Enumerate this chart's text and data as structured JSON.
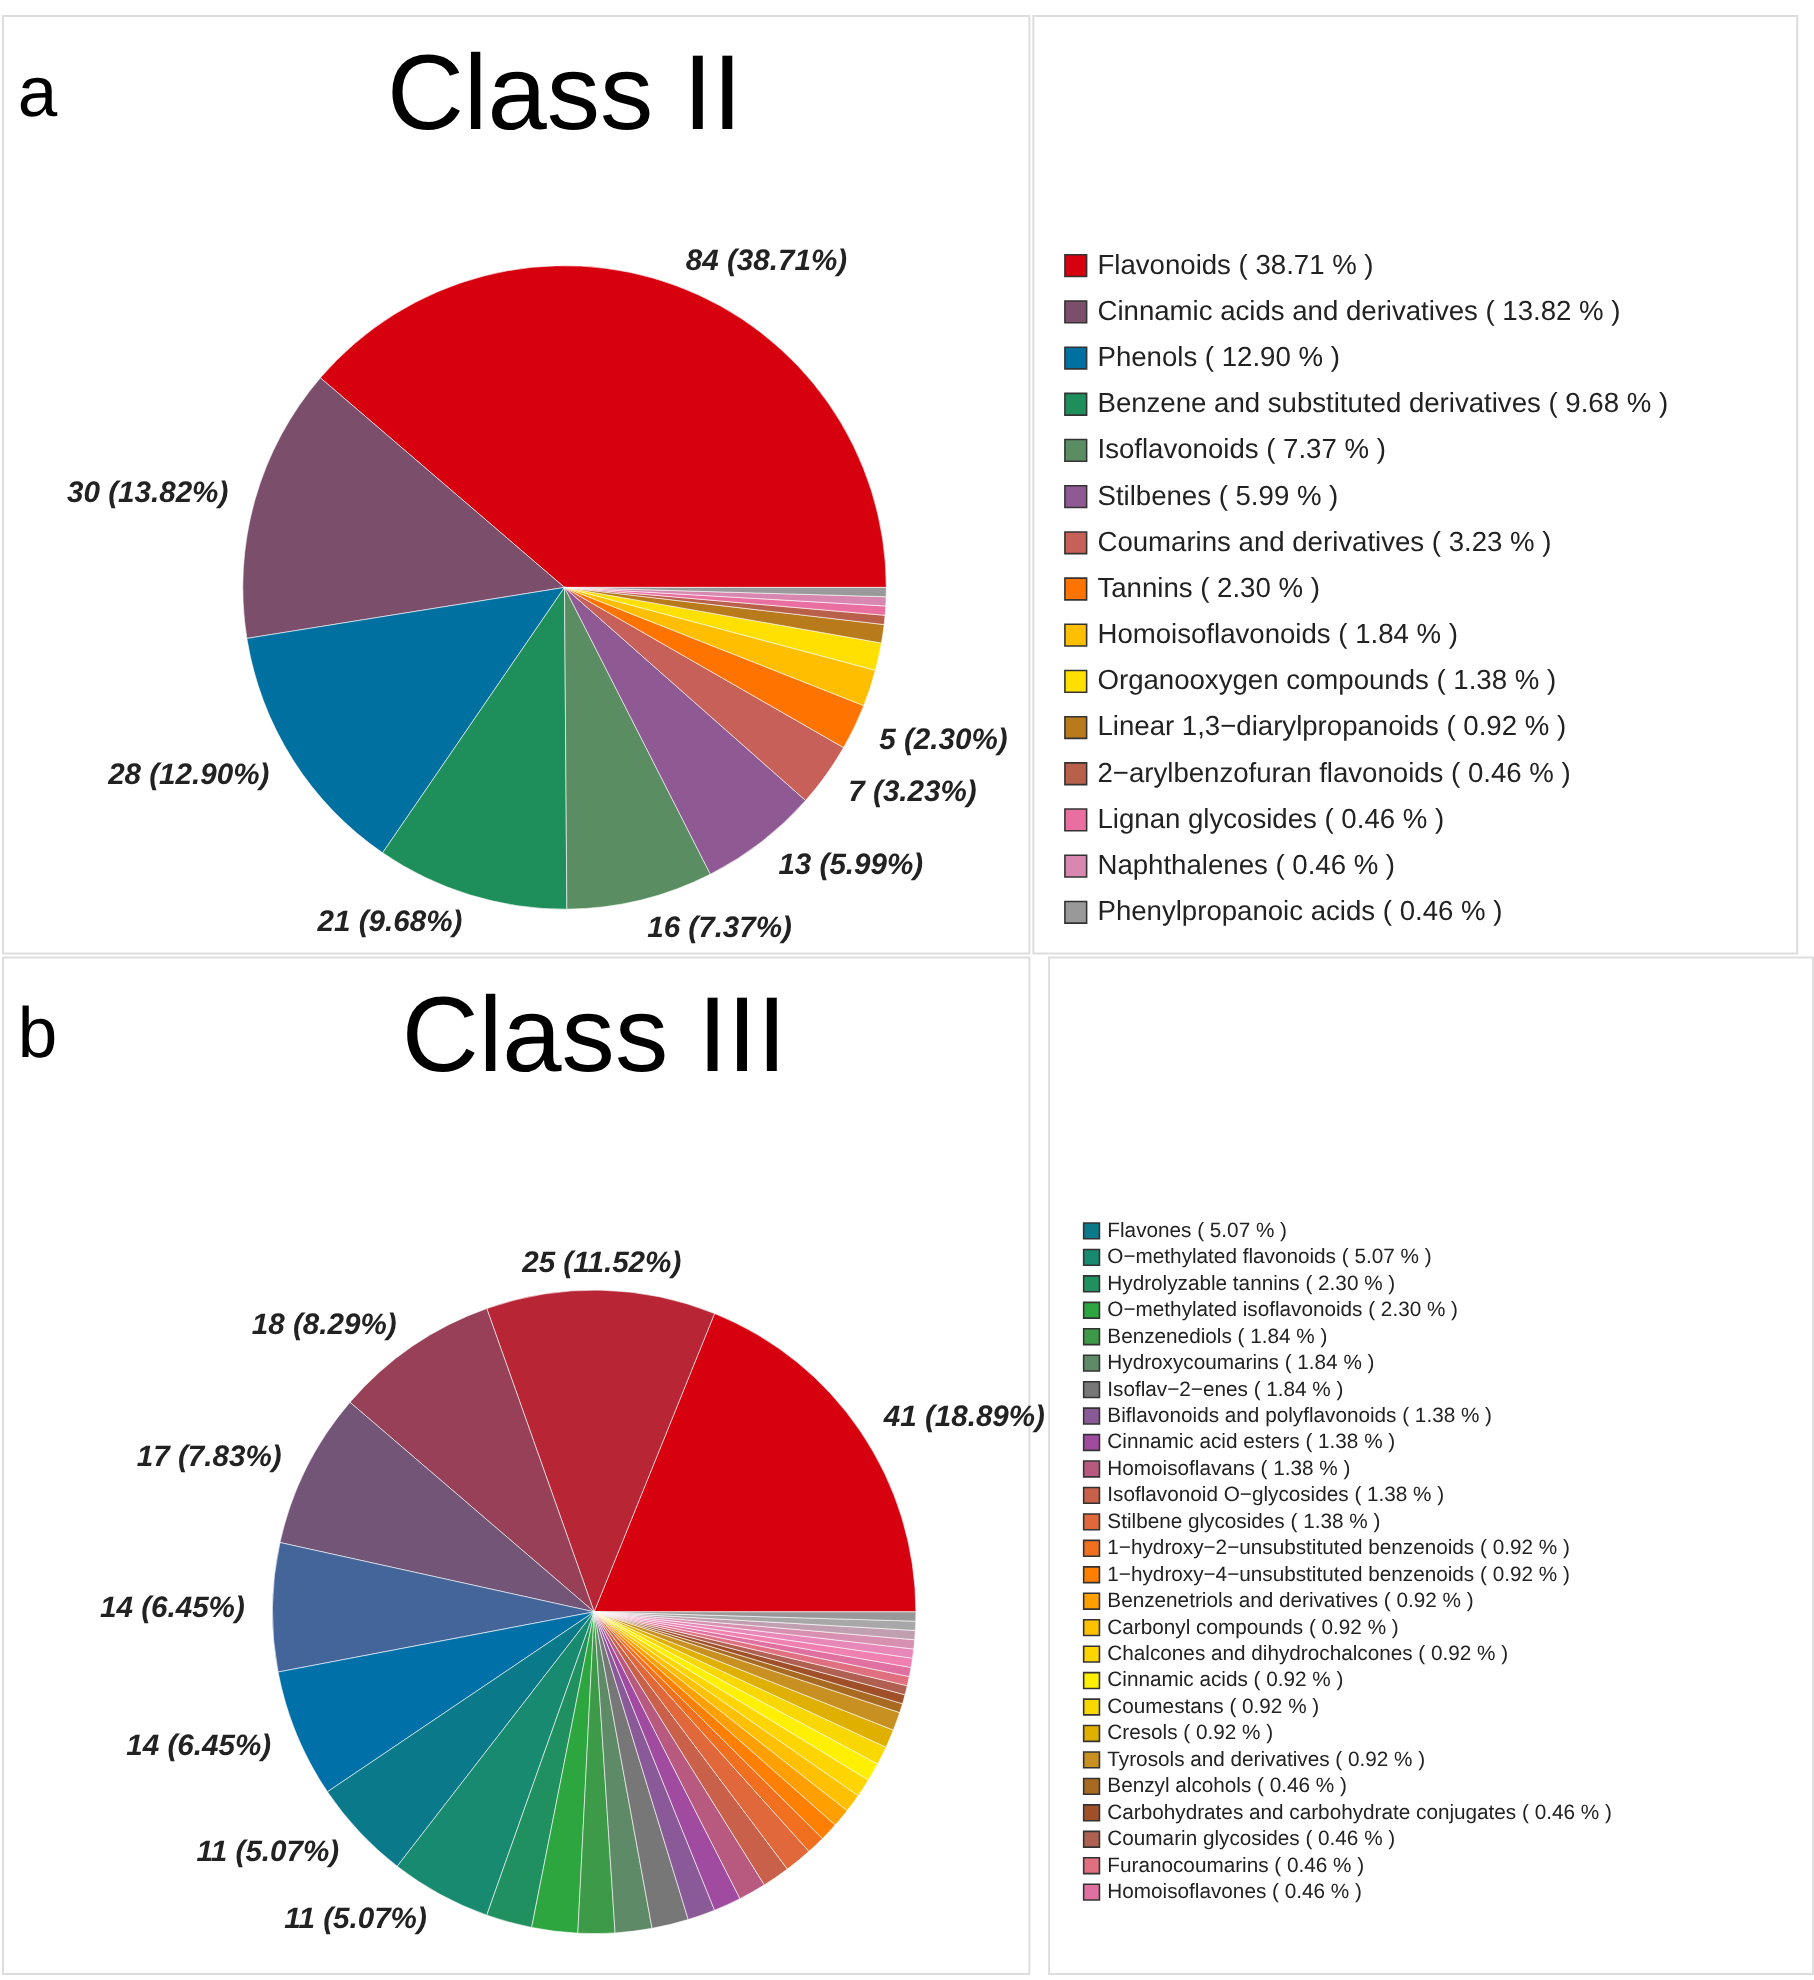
{
  "chart_data": [
    {
      "type": "pie",
      "title": "Class II",
      "annotations": [
        "a"
      ],
      "legend": "right",
      "categories": [
        "Flavonoids ( 38.71 % )",
        "Cinnamic acids and derivatives ( 13.82 % )",
        "Phenols ( 12.90 % )",
        "Benzene and substituted derivatives ( 9.68 % )",
        "Isoflavonoids ( 7.37 % )",
        "Stilbenes ( 5.99 % )",
        "Coumarins and derivatives ( 3.23 % )",
        "Tannins ( 2.30 % )",
        "Homoisoflavonoids ( 1.84 % )",
        "Organooxygen compounds ( 1.38 % )",
        "Linear 1,3−diarylpropanoids ( 0.92 % )",
        "2−arylbenzofuran flavonoids ( 0.46 % )",
        "Lignan glycosides ( 0.46 % )",
        "Naphthalenes ( 0.46 % )",
        "Phenylpropanoic acids ( 0.46 % )"
      ],
      "values": [
        84,
        30,
        28,
        21,
        16,
        13,
        7,
        5,
        4,
        3,
        2,
        1,
        1,
        1,
        1
      ],
      "colors": [
        "#d7000f",
        "#7b4e6b",
        "#0070a0",
        "#1e8f5a",
        "#5a8e62",
        "#8f5a94",
        "#c8605a",
        "#ff7300",
        "#ffbf00",
        "#ffe000",
        "#b87a1a",
        "#b8604a",
        "#e86fa0",
        "#d888b0",
        "#999999"
      ],
      "value_labels": [
        "84 (38.71%)",
        "30 (13.82%)",
        "28 (12.90%)",
        "21 (9.68%)",
        "16 (7.37%)",
        "13 (5.99%)",
        "7 (3.23%)",
        "5 (2.30%)",
        null,
        null,
        null,
        null,
        null,
        null,
        null
      ]
    },
    {
      "type": "pie",
      "title": "Class III",
      "annotations": [
        "b"
      ],
      "legend": "right",
      "categories": [
        null,
        null,
        null,
        null,
        null,
        null,
        "Flavones ( 5.07 % )",
        "O−methylated flavonoids ( 5.07 % )",
        "Hydrolyzable tannins ( 2.30 % )",
        "O−methylated isoflavonoids ( 2.30 % )",
        "Benzenediols ( 1.84 % )",
        "Hydroxycoumarins ( 1.84 % )",
        "Isoflav−2−enes ( 1.84 % )",
        "Biflavonoids and polyflavonoids ( 1.38 % )",
        "Cinnamic acid esters ( 1.38 % )",
        "Homoisoflavans ( 1.38 % )",
        "Isoflavonoid O−glycosides ( 1.38 % )",
        "Stilbene glycosides ( 1.38 % )",
        "1−hydroxy−2−unsubstituted benzenoids ( 0.92 % )",
        "1−hydroxy−4−unsubstituted benzenoids ( 0.92 % )",
        "Benzenetriols and derivatives ( 0.92 % )",
        "Carbonyl compounds ( 0.92 % )",
        "Chalcones and dihydrochalcones ( 0.92 % )",
        "Cinnamic acids ( 0.92 % )",
        "Coumestans ( 0.92 % )",
        "Cresols ( 0.92 % )",
        "Tyrosols and derivatives ( 0.92 % )",
        "Benzyl alcohols ( 0.46 % )",
        "Carbohydrates and carbohydrate conjugates ( 0.46 % )",
        "Coumarin glycosides ( 0.46 % )",
        "Furanocoumarins ( 0.46 % )",
        "Homoisoflavones ( 0.46 % )",
        null,
        null,
        null,
        null,
        null,
        null
      ],
      "values": [
        41,
        25,
        18,
        17,
        14,
        14,
        11,
        11,
        5,
        5,
        4,
        4,
        4,
        3,
        3,
        3,
        3,
        3,
        2,
        2,
        2,
        2,
        2,
        2,
        2,
        2,
        2,
        1,
        1,
        1,
        1,
        1,
        1,
        1,
        1,
        1,
        1,
        1
      ],
      "colors": [
        "#d7000f",
        "#b82535",
        "#974058",
        "#735577",
        "#43659a",
        "#0071a8",
        "#0a7a8a",
        "#178a70",
        "#219060",
        "#2ea640",
        "#3d9a48",
        "#5f8a68",
        "#777777",
        "#8a5a98",
        "#a04aa0",
        "#b85a80",
        "#c8604a",
        "#e0683a",
        "#f07020",
        "#ff8000",
        "#ffa000",
        "#ffc000",
        "#ffd500",
        "#fff000",
        "#f8d800",
        "#e0b000",
        "#c89020",
        "#a86a20",
        "#a05028",
        "#b06050",
        "#e07080",
        "#e070a0",
        "#f080b0",
        "#e888b8",
        "#d890b0",
        "#c0a0b0",
        "#a8a8a8",
        "#999999"
      ],
      "value_labels": [
        "41 (18.89%)",
        "25 (11.52%)",
        "18 (8.29%)",
        "17 (7.83%)",
        "14 (6.45%)",
        "14 (6.45%)",
        "11 (5.07%)",
        "11 (5.07%)",
        null,
        null,
        null,
        null,
        null,
        null,
        null,
        null,
        null,
        null,
        null,
        null,
        null,
        null,
        null,
        null,
        null,
        null,
        null,
        null,
        null,
        null,
        null,
        null,
        null,
        null,
        null,
        null,
        null,
        null
      ]
    }
  ]
}
